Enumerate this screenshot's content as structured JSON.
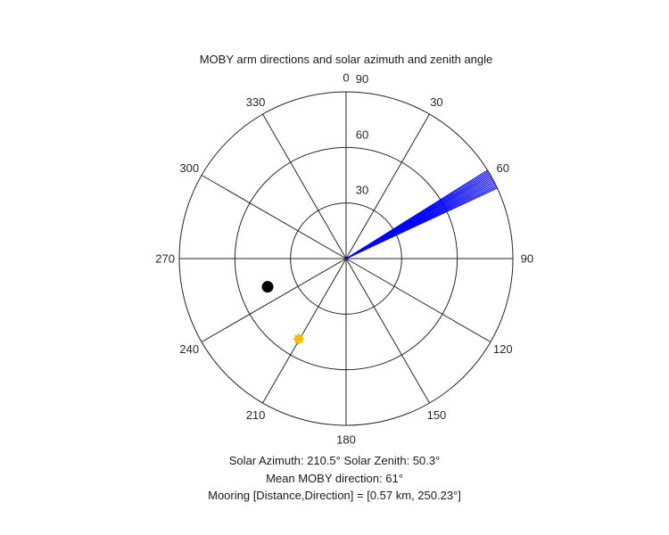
{
  "chart_data": {
    "type": "polar",
    "title": "MOBY arm directions and solar azimuth and zenith angle",
    "theta_zero": "top",
    "theta_direction": "clockwise",
    "r_range": [
      0,
      90
    ],
    "radial_ticks": [
      30,
      60,
      90
    ],
    "radial_tick_labels": [
      "30",
      "60",
      "90"
    ],
    "angle_ticks": [
      0,
      30,
      60,
      90,
      120,
      150,
      180,
      210,
      240,
      270,
      300,
      330
    ],
    "angle_tick_labels": [
      "0",
      "30",
      "60",
      "90",
      "120",
      "150",
      "180",
      "210",
      "240",
      "270",
      "300",
      "330"
    ],
    "grid": true,
    "colors": {
      "moby": "#0000ff",
      "mooring": "#000000",
      "sun": "#ffcc00",
      "grid": "#262626"
    },
    "series": [
      {
        "kind": "lines",
        "role": "moby-arm-directions",
        "color": "#0000ff",
        "theta": [
          58,
          58.5,
          59,
          59.5,
          60,
          60.5,
          61,
          61.5,
          62,
          62.5,
          63,
          63.5,
          64,
          64.5,
          65
        ],
        "r": [
          90,
          90,
          90,
          90,
          90,
          90,
          90,
          90,
          90,
          90,
          90,
          90,
          90,
          90,
          90
        ]
      },
      {
        "kind": "marker",
        "role": "mooring-location",
        "color": "#000000",
        "theta": 250.2,
        "r": 45
      },
      {
        "kind": "marker",
        "role": "sun-position",
        "color": "#ffcc00",
        "theta": 210.5,
        "r": 50.3
      }
    ]
  },
  "footer": {
    "line1": "Solar Azimuth: 210.5°    Solar Zenith: 50.3°",
    "line2": "Mean MOBY direction: 61°",
    "line3": "Mooring [Distance,Direction] = [0.57 km, 250.23°]"
  }
}
